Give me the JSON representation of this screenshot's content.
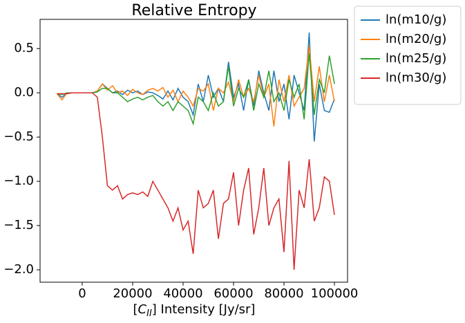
{
  "chart_data": {
    "type": "line",
    "title": "Relative Entropy",
    "x_label": {
      "prefix": "[",
      "symbol": "C",
      "subscript": "II",
      "suffix": "] Intensity [Jy/sr]"
    },
    "x": [
      -10000,
      -8000,
      -6000,
      -4000,
      -2000,
      0,
      2000,
      4000,
      6000,
      8000,
      10000,
      12000,
      14000,
      16000,
      18000,
      20000,
      22000,
      24000,
      26000,
      28000,
      30000,
      32000,
      34000,
      36000,
      38000,
      40000,
      42000,
      44000,
      46000,
      48000,
      50000,
      52000,
      54000,
      56000,
      58000,
      60000,
      62000,
      64000,
      66000,
      68000,
      70000,
      72000,
      74000,
      76000,
      78000,
      80000,
      82000,
      84000,
      86000,
      88000,
      90000,
      92000,
      94000,
      96000,
      98000,
      100000
    ],
    "series": [
      {
        "name": "ln(m10/g)",
        "color": "#1f77b4",
        "values": [
          -0.01,
          -0.05,
          0,
          0,
          0,
          0,
          0,
          0,
          0.02,
          0.1,
          0.05,
          0,
          0.02,
          -0.02,
          0.03,
          0,
          0.02,
          -0.02,
          0.01,
          0,
          -0.03,
          -0.07,
          0.02,
          -0.08,
          0.05,
          -0.05,
          -0.1,
          -0.25,
          0.1,
          -0.1,
          0.2,
          -0.05,
          0.05,
          -0.1,
          0.35,
          -0.05,
          0.1,
          -0.2,
          0.15,
          -0.15,
          0.25,
          0,
          -0.2,
          0.25,
          -0.1,
          0.1,
          -0.3,
          0.2,
          0,
          -0.2,
          0.68,
          -0.55,
          0.1,
          -0.2,
          -0.22,
          -0.07
        ]
      },
      {
        "name": "ln(m20/g)",
        "color": "#ff7f0e",
        "values": [
          -0.01,
          -0.08,
          0,
          0,
          0,
          0,
          0,
          0,
          0.02,
          0.1,
          0.03,
          0.08,
          0,
          0.02,
          -0.03,
          0.04,
          0,
          -0.02,
          0.03,
          0.05,
          0.02,
          0.06,
          -0.05,
          0.03,
          -0.1,
          0.02,
          -0.05,
          -0.15,
          0.05,
          0.02,
          0.1,
          -0.2,
          0.05,
          0,
          0.12,
          -0.1,
          0.15,
          -0.05,
          0.05,
          -0.1,
          0.2,
          -0.05,
          0.1,
          -0.38,
          0.15,
          -0.1,
          0.2,
          -0.15,
          -0.05,
          0.05,
          0.53,
          -0.1,
          0.3,
          -0.1,
          0.2,
          -0.1
        ]
      },
      {
        "name": "ln(m25/g)",
        "color": "#2ca02c",
        "values": [
          -0.01,
          -0.02,
          0,
          0,
          0,
          0,
          0,
          0,
          0.01,
          0.05,
          0.05,
          0,
          0,
          -0.05,
          -0.1,
          -0.07,
          -0.05,
          -0.08,
          -0.05,
          -0.03,
          -0.1,
          -0.15,
          -0.1,
          -0.2,
          -0.1,
          -0.15,
          -0.2,
          -0.35,
          -0.05,
          -0.1,
          -0.2,
          0,
          -0.15,
          -0.1,
          0.3,
          -0.15,
          0.05,
          -0.05,
          0.15,
          -0.2,
          0.1,
          -0.05,
          0.25,
          -0.1,
          0,
          -0.2,
          0.15,
          -0.05,
          0.1,
          -0.3,
          0.45,
          -0.25,
          0.15,
          0,
          0.42,
          0.1
        ]
      },
      {
        "name": "ln(m30/g)",
        "color": "#d62728",
        "values": [
          -0.01,
          -0.01,
          -0.01,
          0,
          0,
          0,
          0,
          0,
          -0.05,
          -0.5,
          -1.05,
          -1.1,
          -1.05,
          -1.2,
          -1.15,
          -1.13,
          -1.15,
          -1.12,
          -1.17,
          -1.0,
          -1.1,
          -1.2,
          -1.3,
          -1.45,
          -1.3,
          -1.55,
          -1.45,
          -1.82,
          -1.1,
          -1.3,
          -1.25,
          -1.1,
          -1.65,
          -1.25,
          -1.2,
          -0.9,
          -1.5,
          -1.1,
          -0.85,
          -1.6,
          -1.3,
          -0.85,
          -1.5,
          -1.3,
          -1.2,
          -1.8,
          -0.77,
          -2.0,
          -1.1,
          -1.3,
          -0.75,
          -1.45,
          -1.3,
          -0.95,
          -1.0,
          -1.38
        ]
      }
    ],
    "xlim": [
      -16700,
      105200
    ],
    "xticks": [
      0,
      20000,
      40000,
      60000,
      80000,
      100000
    ],
    "ylim": [
      -2.14,
      0.83
    ],
    "yticks": [
      {
        "value": 0.5,
        "label": "0.5"
      },
      {
        "value": 0.0,
        "label": "0.0"
      },
      {
        "value": -0.5,
        "label": "−0.5"
      },
      {
        "value": -1.0,
        "label": "−1.0"
      },
      {
        "value": -1.5,
        "label": "−1.5"
      },
      {
        "value": -2.0,
        "label": "−2.0"
      }
    ],
    "legend": "outside-upper-right"
  }
}
